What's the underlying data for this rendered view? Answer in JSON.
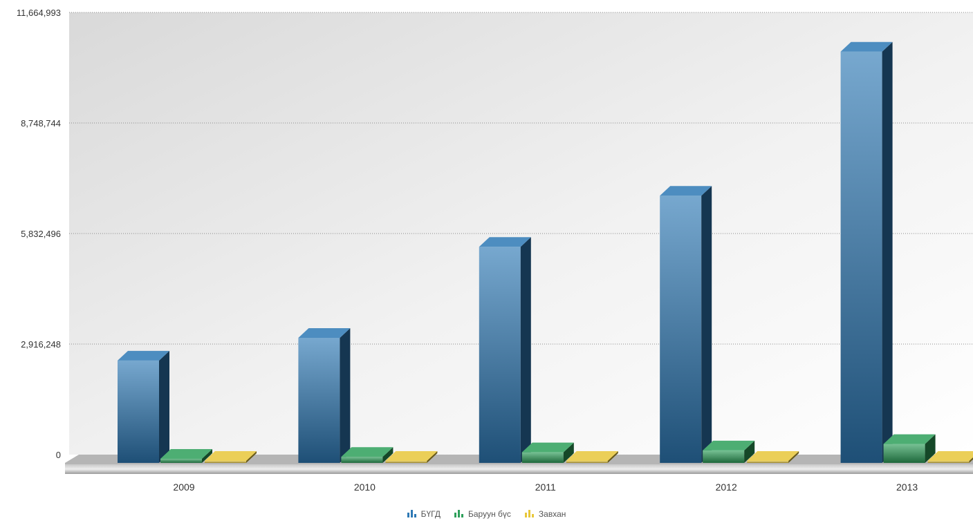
{
  "chart_data": {
    "type": "bar",
    "title": "",
    "xlabel": "",
    "ylabel": "",
    "categories": [
      "2009",
      "2010",
      "2011",
      "2012",
      "2013"
    ],
    "ylim": [
      0,
      11664993
    ],
    "y_ticks": [
      "0",
      "2,916,248",
      "5,832,496",
      "8,748,744",
      "11,664,993"
    ],
    "grid": "horizontal dotted",
    "legend_position": "bottom",
    "three_d": true,
    "series": [
      {
        "name": "БҮГД",
        "color": "#2e79b5",
        "values": [
          2700000,
          3300000,
          5700000,
          7050000,
          10850000
        ]
      },
      {
        "name": "Баруун бүс",
        "color": "#2ea05a",
        "values": [
          110000,
          160000,
          280000,
          330000,
          500000
        ]
      },
      {
        "name": "Завхан",
        "color": "#e8c73a",
        "values": [
          12000,
          15000,
          22000,
          25000,
          40000
        ]
      }
    ]
  }
}
